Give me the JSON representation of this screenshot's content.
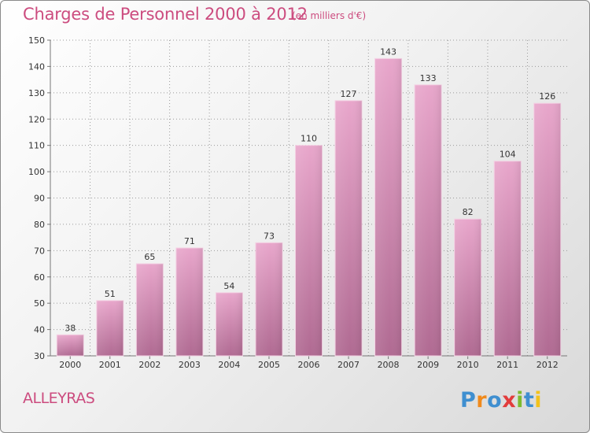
{
  "title": "Charges de Personnel 2000 à 2012",
  "subtitle": "(en milliers d'€)",
  "commune": "ALLEYRAS",
  "logo_text": "Proxiti",
  "colors": {
    "title": "#cc4c7f",
    "bar_top": "#e8a6cb",
    "bar_bottom": "#b06a92",
    "grid": "#9a9a9a",
    "axis": "#777777"
  },
  "chart_data": {
    "type": "bar",
    "title": "Charges de Personnel 2000 à 2012",
    "subtitle": "(en milliers d'€)",
    "categories": [
      "2000",
      "2001",
      "2002",
      "2003",
      "2004",
      "2005",
      "2006",
      "2007",
      "2008",
      "2009",
      "2010",
      "2011",
      "2012"
    ],
    "values": [
      38,
      51,
      65,
      71,
      54,
      73,
      110,
      127,
      143,
      133,
      82,
      104,
      126
    ],
    "ylim": [
      30,
      150
    ],
    "yticks": [
      30,
      40,
      50,
      60,
      70,
      80,
      90,
      100,
      110,
      120,
      130,
      140,
      150
    ],
    "grid": "horizontal dashed",
    "data_labels": true,
    "legend": "none"
  }
}
